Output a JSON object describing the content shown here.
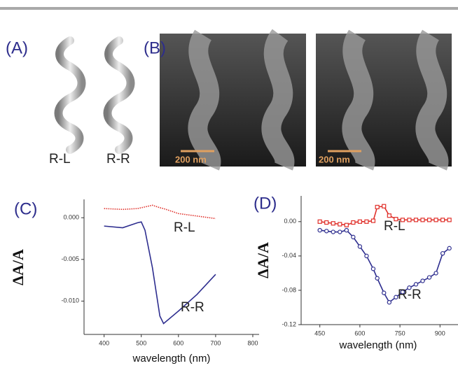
{
  "figure": {
    "panel_a": "(A)",
    "panel_b": "(B)",
    "helix_left": "R-L",
    "helix_right": "R-R",
    "scale_left": "200 nm",
    "scale_right": "200 nm"
  },
  "chart_data": [
    {
      "type": "line",
      "panel": "(C)",
      "x_label": "wavelength (nm)",
      "y_label": "ΔA/A",
      "x": [
        400,
        450,
        490,
        500,
        510,
        530,
        550,
        560,
        600,
        650,
        700
      ],
      "series": [
        {
          "name": "R-L",
          "color": "#e0302a",
          "line_style": "dotted",
          "values": [
            0.0011,
            0.001,
            0.0011,
            0.0012,
            0.0013,
            0.0015,
            0.0012,
            0.0011,
            0.0005,
            0.0002,
            -0.0001
          ]
        },
        {
          "name": "R-R",
          "color": "#2e2e8f",
          "line_style": "solid",
          "values": [
            -0.001,
            -0.0012,
            -0.0006,
            -0.0005,
            -0.0015,
            -0.006,
            -0.0118,
            -0.0127,
            -0.0112,
            -0.0092,
            -0.0068
          ]
        }
      ],
      "xlim": [
        346,
        817
      ],
      "xticks": [
        400,
        500,
        600,
        700,
        800
      ],
      "ylim": [
        -0.014,
        0.0022
      ],
      "yticks": [
        {
          "value": 0,
          "label": "0.000"
        },
        {
          "value": -0.005,
          "label": "-0.005"
        },
        {
          "value": -0.01,
          "label": "-0.010"
        }
      ]
    },
    {
      "type": "line",
      "panel": "(D)",
      "x_label": "wavelength (nm)",
      "y_label": "ΔA/A",
      "x": [
        450,
        475,
        500,
        525,
        550,
        575,
        600,
        625,
        650,
        665,
        690,
        710,
        735,
        760,
        785,
        810,
        835,
        860,
        885,
        910,
        935
      ],
      "series": [
        {
          "name": "R-L",
          "color": "#e0302a",
          "line_style": "solid",
          "marker": "square",
          "values": [
            0.0,
            -0.001,
            -0.002,
            -0.003,
            -0.004,
            -0.001,
            0.0,
            0.0,
            0.001,
            0.017,
            0.018,
            0.007,
            0.003,
            0.002,
            0.002,
            0.002,
            0.002,
            0.002,
            0.002,
            0.002,
            0.002
          ]
        },
        {
          "name": "R-R",
          "color": "#2e2e8f",
          "line_style": "solid",
          "marker": "circle",
          "values": [
            -0.01,
            -0.011,
            -0.012,
            -0.012,
            -0.01,
            -0.018,
            -0.029,
            -0.04,
            -0.055,
            -0.066,
            -0.083,
            -0.094,
            -0.088,
            -0.082,
            -0.077,
            -0.073,
            -0.069,
            -0.065,
            -0.06,
            -0.037,
            -0.031
          ]
        }
      ],
      "xlim": [
        380,
        970
      ],
      "xticks": [
        450,
        600,
        750,
        900
      ],
      "ylim": [
        -0.12,
        0.03
      ],
      "yticks": [
        {
          "value": 0,
          "label": "0.00"
        },
        {
          "value": -0.04,
          "label": "-0.04"
        },
        {
          "value": -0.08,
          "label": "-0.08"
        },
        {
          "value": -0.12,
          "label": "-0.12"
        }
      ]
    }
  ]
}
